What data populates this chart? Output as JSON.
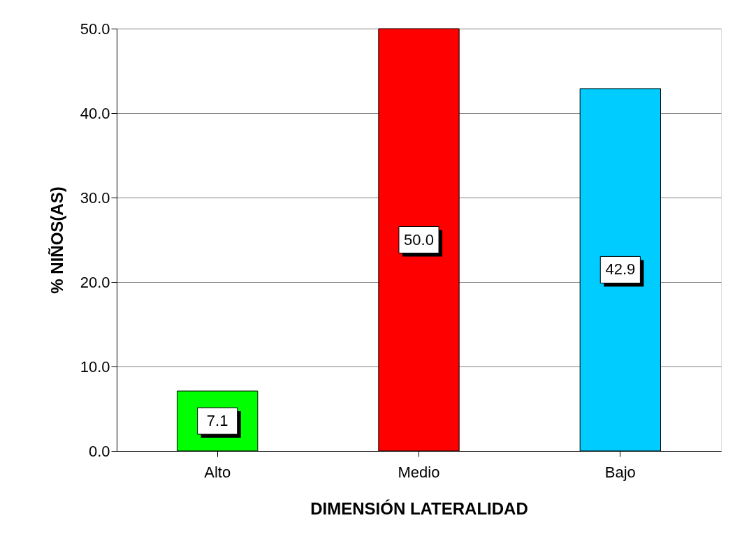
{
  "chart_data": {
    "type": "bar",
    "xlabel": "DIMENSIÓN LATERALIDAD",
    "ylabel": "% NIÑOS(AS)",
    "categories": [
      "Alto",
      "Medio",
      "Bajo"
    ],
    "values": [
      7.1,
      50.0,
      42.9
    ],
    "colors": [
      "#00ff00",
      "#ff0000",
      "#00ccff"
    ],
    "value_labels": [
      "7.1",
      "50.0",
      "42.9"
    ],
    "ylim": [
      0,
      50
    ],
    "yticks": [
      {
        "value": 0,
        "label": "0.0"
      },
      {
        "value": 10,
        "label": "10.0"
      },
      {
        "value": 20,
        "label": "20.0"
      },
      {
        "value": 30,
        "label": "30.0"
      },
      {
        "value": 40,
        "label": "40.0"
      },
      {
        "value": 50,
        "label": "50.0"
      }
    ],
    "grid": "y",
    "legend": false
  }
}
